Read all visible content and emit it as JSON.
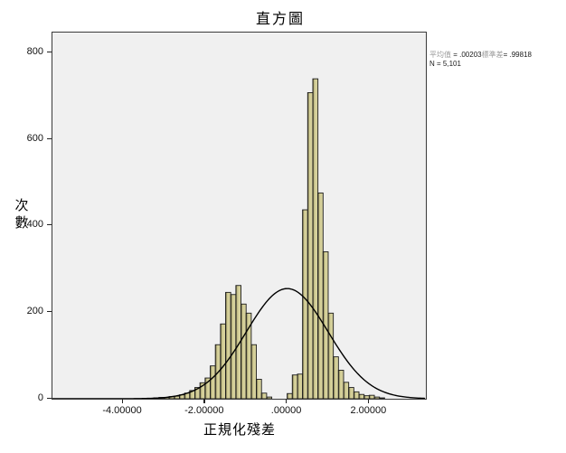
{
  "title": "直方圖",
  "legend": {
    "mean_label": "平均值 ",
    "mean_value": "= .00203",
    "sd_label": "標準差",
    "sd_value": "= .99818",
    "n_line": "N = 5,101"
  },
  "axes": {
    "y_label": "次\n數",
    "x_label": "正規化殘差",
    "y_ticks": [
      0,
      200,
      400,
      600,
      800
    ],
    "x_ticks": [
      {
        "value": -4,
        "label": "-4.00000"
      },
      {
        "value": -2,
        "label": "-2.00000"
      },
      {
        "value": 0,
        "label": ".00000"
      },
      {
        "value": 2,
        "label": "2.00000"
      }
    ]
  },
  "chart_data": {
    "type": "bar",
    "subtype": "histogram-with-normal-curve",
    "title": "直方圖",
    "xlabel": "正規化殘差",
    "ylabel": "次數",
    "x_range": [
      -5.72,
      3.38
    ],
    "y_range": [
      0,
      847
    ],
    "bin_width": 0.125,
    "stats": {
      "mean": 0.00203,
      "sd": 0.99818,
      "n": 5101
    },
    "bars": [
      {
        "x": -3.25,
        "count": 2
      },
      {
        "x": -3.125,
        "count": 3
      },
      {
        "x": -3.0,
        "count": 3
      },
      {
        "x": -2.875,
        "count": 5
      },
      {
        "x": -2.75,
        "count": 6
      },
      {
        "x": -2.625,
        "count": 9
      },
      {
        "x": -2.5,
        "count": 13
      },
      {
        "x": -2.375,
        "count": 19
      },
      {
        "x": -2.25,
        "count": 26
      },
      {
        "x": -2.125,
        "count": 37
      },
      {
        "x": -2.0,
        "count": 48
      },
      {
        "x": -1.875,
        "count": 76
      },
      {
        "x": -1.75,
        "count": 125
      },
      {
        "x": -1.625,
        "count": 173
      },
      {
        "x": -1.5,
        "count": 246
      },
      {
        "x": -1.375,
        "count": 241
      },
      {
        "x": -1.25,
        "count": 262
      },
      {
        "x": -1.125,
        "count": 219
      },
      {
        "x": -1.0,
        "count": 198
      },
      {
        "x": -0.875,
        "count": 125
      },
      {
        "x": -0.75,
        "count": 45
      },
      {
        "x": -0.625,
        "count": 13
      },
      {
        "x": -0.5,
        "count": 4
      },
      {
        "x": 0.0,
        "count": 12
      },
      {
        "x": 0.125,
        "count": 55
      },
      {
        "x": 0.25,
        "count": 57
      },
      {
        "x": 0.375,
        "count": 437
      },
      {
        "x": 0.5,
        "count": 708
      },
      {
        "x": 0.625,
        "count": 740
      },
      {
        "x": 0.75,
        "count": 476
      },
      {
        "x": 0.875,
        "count": 340
      },
      {
        "x": 1.0,
        "count": 198
      },
      {
        "x": 1.125,
        "count": 97
      },
      {
        "x": 1.25,
        "count": 66
      },
      {
        "x": 1.375,
        "count": 38
      },
      {
        "x": 1.5,
        "count": 26
      },
      {
        "x": 1.625,
        "count": 16
      },
      {
        "x": 1.75,
        "count": 10
      },
      {
        "x": 1.875,
        "count": 7
      },
      {
        "x": 2.0,
        "count": 8
      },
      {
        "x": 2.125,
        "count": 4
      },
      {
        "x": 2.25,
        "count": 2
      }
    ],
    "curve": {
      "type": "normal",
      "peak_count": 255
    },
    "colors": {
      "bar_fill": "#d2cd94",
      "bar_fill_light": "#d8d3a0",
      "bar_shadow": "#655f3d",
      "bar_stroke": "#1c1c1c",
      "curve": "#000000",
      "plot_bg": "#f0f0f0",
      "frame": "#3a3a3a",
      "legend_dim_text": "#9a9a9a"
    },
    "legend_position": "top-right-outside",
    "grid": false
  }
}
